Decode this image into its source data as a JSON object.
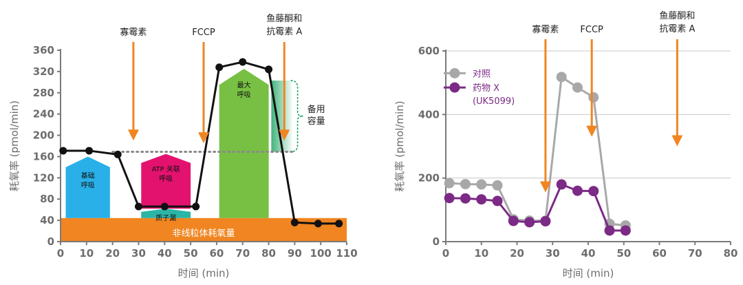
{
  "chart_data": [
    {
      "type": "line",
      "xlabel": "时间 (min)",
      "ylabel": "耗氧率 (pmol/min)",
      "xlim": [
        0,
        110
      ],
      "ylim": [
        0,
        360
      ],
      "xticks": [
        0,
        10,
        20,
        30,
        40,
        50,
        60,
        70,
        80,
        90,
        100,
        110
      ],
      "yticks": [
        0,
        40,
        80,
        120,
        160,
        200,
        240,
        280,
        320,
        360
      ],
      "series": [
        {
          "x": [
            1,
            11,
            22,
            30,
            40,
            52,
            61,
            70,
            80,
            90,
            99,
            107
          ],
          "values": [
            171,
            171,
            164,
            66,
            66,
            66,
            328,
            338,
            324,
            36,
            34,
            34
          ]
        }
      ],
      "basal_reference_value": 169,
      "colors": {
        "line": "#111111",
        "basal": "#29b0e8",
        "atp": "#e3126f",
        "leak": "#2bb5a6",
        "maximal": "#77c043",
        "nonmito": "#f08521",
        "spare": "#1fa665",
        "arrow": "#f08521"
      },
      "injections": [
        {
          "label_lines": [
            "寡霉素"
          ],
          "x": 28
        },
        {
          "label_lines": [
            "FCCP"
          ],
          "x": 55
        },
        {
          "label_lines": [
            "鱼藤酮和",
            "抗霉素 A"
          ],
          "x": 86
        }
      ],
      "regions": {
        "basal": {
          "label_lines": [
            "基础",
            "呼吸"
          ]
        },
        "atp": {
          "label_lines": [
            "ATP 关联",
            "呼吸"
          ]
        },
        "leak": {
          "label_lines": [
            "质子漏"
          ]
        },
        "maximal": {
          "label_lines": [
            "最大",
            "呼吸"
          ]
        },
        "nonmito": {
          "label_lines": [
            "非线粒体耗氧量"
          ]
        },
        "spare": {
          "label_lines": [
            "备用",
            "容量"
          ]
        }
      }
    },
    {
      "type": "line",
      "xlabel": "时间 (min)",
      "ylabel": "耗氧率 (pmol/min)",
      "xlim": [
        0,
        80
      ],
      "ylim": [
        0,
        600
      ],
      "xticks": [
        0,
        10,
        20,
        30,
        40,
        50,
        60,
        70,
        80
      ],
      "yticks": [
        0,
        200,
        400,
        600
      ],
      "grid": true,
      "legend": "top-left",
      "series": [
        {
          "name": "对照",
          "color": "#a8a8a8",
          "x": [
            1,
            5.5,
            10,
            14.5,
            19,
            23.5,
            28,
            32.5,
            37,
            41.5,
            46,
            50.5
          ],
          "values": [
            184,
            181,
            180,
            177,
            70,
            66,
            66,
            518,
            485,
            454,
            56,
            51
          ]
        },
        {
          "name": "药物 X (UK5099)",
          "color": "#7b2a85",
          "x": [
            1,
            5.5,
            10,
            14.5,
            19,
            23.5,
            28,
            32.5,
            37,
            41.5,
            46,
            50.5
          ],
          "values": [
            137,
            136,
            133,
            128,
            65,
            61,
            64,
            180,
            160,
            159,
            35,
            35
          ]
        }
      ],
      "injections": [
        {
          "label_lines": [
            "寡霉素"
          ],
          "x": 28
        },
        {
          "label_lines": [
            "FCCP"
          ],
          "x": 41
        },
        {
          "label_lines": [
            "鱼藤酮和",
            "抗霉素 A"
          ],
          "x": 65
        }
      ]
    }
  ]
}
